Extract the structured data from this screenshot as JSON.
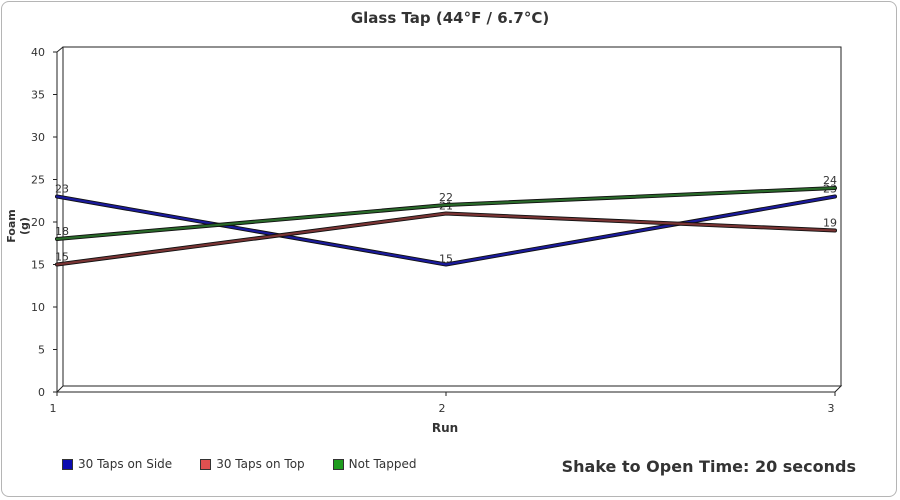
{
  "chart_data": {
    "type": "line",
    "title": "Glass Tap (44°F / 6.7°C)",
    "xlabel": "Run",
    "ylabel": "Foam (g)",
    "categories": [
      "1",
      "2",
      "3"
    ],
    "ylim": [
      0,
      40
    ],
    "yticks": [
      0,
      5,
      10,
      15,
      20,
      25,
      30,
      35,
      40
    ],
    "grid": false,
    "legend_position": "bottom-left",
    "series": [
      {
        "name": "30 Taps on Side",
        "values": [
          23,
          15,
          23
        ],
        "color": "#1a1a9c",
        "swatch": "#0b0bb0"
      },
      {
        "name": "30 Taps on Top",
        "values": [
          15,
          21,
          19
        ],
        "color": "#7a3434",
        "swatch": "#e05050"
      },
      {
        "name": "Not Tapped",
        "values": [
          18,
          22,
          24
        ],
        "color": "#2a6a2a",
        "swatch": "#1e9c1e"
      }
    ]
  },
  "note": "Shake to Open Time: 20 seconds"
}
